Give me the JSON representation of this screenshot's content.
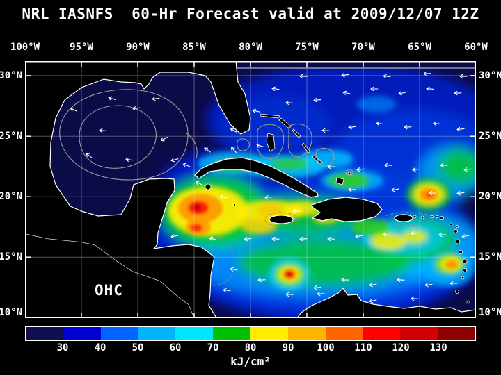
{
  "title": "NRL IASNFS  60-Hr Forecast valid at 2009/12/07 12Z",
  "map": {
    "field_label": "OHC",
    "x_axis": {
      "ticks": [
        "100°W",
        "95°W",
        "90°W",
        "85°W",
        "80°W",
        "75°W",
        "70°W",
        "65°W",
        "60°W"
      ]
    },
    "y_axis_left": {
      "ticks": [
        "30°N",
        "25°N",
        "20°N",
        "15°N",
        "10°N"
      ]
    },
    "y_axis_right": {
      "ticks": [
        "30°N",
        "25°N",
        "20°N",
        "15°N",
        "10°N"
      ]
    }
  },
  "colorbar": {
    "tick_labels": [
      "30",
      "40",
      "50",
      "60",
      "70",
      "80",
      "90",
      "100",
      "110",
      "120",
      "130"
    ],
    "unit_label": "kJ/cm²",
    "segment_colors": [
      "#10104e",
      "#0000d2",
      "#0064ff",
      "#00b4ff",
      "#00e6ff",
      "#00c000",
      "#ffec00",
      "#ffb400",
      "#ff6400",
      "#ff0000",
      "#d20000",
      "#8c0000"
    ]
  },
  "chart_data": {
    "type": "heatmap",
    "title": "NRL IASNFS 60-Hr Forecast valid at 2009/12/07 12Z",
    "variable": "OHC",
    "unit": "kJ/cm²",
    "colorbar_ticks": [
      30,
      40,
      50,
      60,
      70,
      80,
      90,
      100,
      110,
      120,
      130
    ],
    "x_axis_ticks_deg_west": [
      100,
      95,
      90,
      85,
      80,
      75,
      70,
      65,
      60
    ],
    "y_axis_ticks_deg_north": [
      30,
      25,
      20,
      15,
      10
    ],
    "notable_features": [
      {
        "feature": "warm pool",
        "lon_w": 84.6,
        "lat_n": 19.1,
        "approx_value_kj_cm2": 120
      },
      {
        "feature": "warm eddy",
        "lon_w": 76.5,
        "lat_n": 13.5,
        "approx_value_kj_cm2": 110
      },
      {
        "feature": "warm eddy",
        "lon_w": 64.2,
        "lat_n": 20.2,
        "approx_value_kj_cm2": 100
      },
      {
        "feature": "Gulf of Mexico background",
        "approx_value_kj_cm2": 25
      }
    ]
  }
}
